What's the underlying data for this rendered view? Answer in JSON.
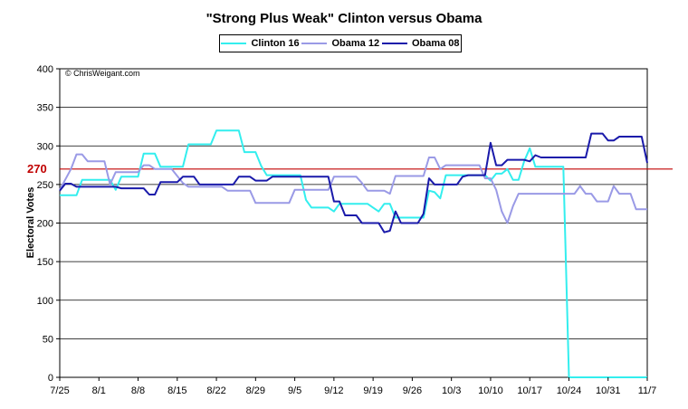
{
  "chart_data": {
    "type": "line",
    "title": "\"Strong Plus Weak\" Clinton versus Obama",
    "ylabel": "Electoral Votes",
    "xlabel": "",
    "ylim": [
      0,
      400
    ],
    "yticks": [
      0,
      50,
      100,
      150,
      200,
      250,
      300,
      350,
      400
    ],
    "xlim": [
      0,
      105
    ],
    "xtick_labels": [
      {
        "x": 0,
        "label": "7/25"
      },
      {
        "x": 7,
        "label": "8/1"
      },
      {
        "x": 14,
        "label": "8/8"
      },
      {
        "x": 21,
        "label": "8/15"
      },
      {
        "x": 28,
        "label": "8/22"
      },
      {
        "x": 35,
        "label": "8/29"
      },
      {
        "x": 42,
        "label": "9/5"
      },
      {
        "x": 49,
        "label": "9/12"
      },
      {
        "x": 56,
        "label": "9/19"
      },
      {
        "x": 63,
        "label": "9/26"
      },
      {
        "x": 70,
        "label": "10/3"
      },
      {
        "x": 77,
        "label": "10/10"
      },
      {
        "x": 84,
        "label": "10/17"
      },
      {
        "x": 91,
        "label": "10/24"
      },
      {
        "x": 98,
        "label": "10/31"
      },
      {
        "x": 105,
        "label": "11/7"
      }
    ],
    "reference_line": {
      "value": 270,
      "label": "270",
      "color": "#c00000"
    },
    "annotation": "© ChrisWeigant.com",
    "legend": "top",
    "grid": true,
    "series": [
      {
        "name": "Clinton 16",
        "color": "#33eeee",
        "points": [
          [
            0,
            236
          ],
          [
            3,
            236
          ],
          [
            4,
            256
          ],
          [
            9,
            256
          ],
          [
            10,
            243
          ],
          [
            11,
            260
          ],
          [
            14,
            260
          ],
          [
            15,
            290
          ],
          [
            17,
            290
          ],
          [
            18,
            273
          ],
          [
            22,
            273
          ],
          [
            23,
            302
          ],
          [
            27,
            302
          ],
          [
            28,
            320
          ],
          [
            32,
            320
          ],
          [
            33,
            292
          ],
          [
            35,
            292
          ],
          [
            36,
            274
          ],
          [
            37,
            262
          ],
          [
            43,
            262
          ],
          [
            44,
            230
          ],
          [
            45,
            220
          ],
          [
            48,
            220
          ],
          [
            49,
            215
          ],
          [
            50,
            225
          ],
          [
            55,
            225
          ],
          [
            56,
            220
          ],
          [
            57,
            215
          ],
          [
            58,
            225
          ],
          [
            59,
            225
          ],
          [
            60,
            207
          ],
          [
            65,
            207
          ],
          [
            66,
            242
          ],
          [
            67,
            240
          ],
          [
            68,
            232
          ],
          [
            69,
            262
          ],
          [
            73,
            262
          ],
          [
            76,
            262
          ],
          [
            77,
            255
          ],
          [
            78,
            264
          ],
          [
            79,
            264
          ],
          [
            80,
            270
          ],
          [
            81,
            256
          ],
          [
            82,
            256
          ],
          [
            83,
            280
          ],
          [
            84,
            297
          ],
          [
            85,
            273
          ],
          [
            88,
            273
          ],
          [
            90,
            273
          ],
          [
            91,
            0
          ],
          [
            105,
            0
          ]
        ]
      },
      {
        "name": "Obama 12",
        "color": "#9a9ae6",
        "points": [
          [
            0,
            243
          ],
          [
            2,
            270
          ],
          [
            3,
            289
          ],
          [
            4,
            289
          ],
          [
            5,
            280
          ],
          [
            8,
            280
          ],
          [
            9,
            250
          ],
          [
            10,
            266
          ],
          [
            14,
            266
          ],
          [
            15,
            275
          ],
          [
            16,
            275
          ],
          [
            17,
            270
          ],
          [
            20,
            270
          ],
          [
            22,
            252
          ],
          [
            23,
            247
          ],
          [
            29,
            247
          ],
          [
            30,
            242
          ],
          [
            34,
            242
          ],
          [
            35,
            226
          ],
          [
            41,
            226
          ],
          [
            42,
            243
          ],
          [
            48,
            243
          ],
          [
            49,
            260
          ],
          [
            53,
            260
          ],
          [
            54,
            252
          ],
          [
            55,
            242
          ],
          [
            58,
            242
          ],
          [
            59,
            238
          ],
          [
            60,
            261
          ],
          [
            65,
            261
          ],
          [
            66,
            285
          ],
          [
            67,
            285
          ],
          [
            68,
            270
          ],
          [
            69,
            275
          ],
          [
            75,
            275
          ],
          [
            76,
            258
          ],
          [
            77,
            258
          ],
          [
            78,
            243
          ],
          [
            79,
            215
          ],
          [
            80,
            200
          ],
          [
            81,
            222
          ],
          [
            82,
            238
          ],
          [
            92,
            238
          ],
          [
            93,
            248
          ],
          [
            94,
            238
          ],
          [
            95,
            238
          ],
          [
            96,
            228
          ],
          [
            98,
            228
          ],
          [
            99,
            248
          ],
          [
            100,
            238
          ],
          [
            102,
            238
          ],
          [
            103,
            218
          ],
          [
            105,
            218
          ]
        ]
      },
      {
        "name": "Obama 08",
        "color": "#1a1aaa",
        "points": [
          [
            0,
            242
          ],
          [
            1,
            251
          ],
          [
            2,
            251
          ],
          [
            3,
            247
          ],
          [
            10,
            247
          ],
          [
            11,
            245
          ],
          [
            15,
            245
          ],
          [
            16,
            237
          ],
          [
            17,
            237
          ],
          [
            18,
            253
          ],
          [
            21,
            253
          ],
          [
            22,
            260
          ],
          [
            24,
            260
          ],
          [
            25,
            250
          ],
          [
            31,
            250
          ],
          [
            32,
            260
          ],
          [
            34,
            260
          ],
          [
            35,
            255
          ],
          [
            37,
            255
          ],
          [
            38,
            260
          ],
          [
            48,
            260
          ],
          [
            49,
            228
          ],
          [
            50,
            228
          ],
          [
            51,
            210
          ],
          [
            53,
            210
          ],
          [
            54,
            200
          ],
          [
            57,
            200
          ],
          [
            58,
            188
          ],
          [
            59,
            190
          ],
          [
            60,
            215
          ],
          [
            61,
            200
          ],
          [
            64,
            200
          ],
          [
            65,
            212
          ],
          [
            66,
            258
          ],
          [
            67,
            250
          ],
          [
            71,
            250
          ],
          [
            72,
            260
          ],
          [
            73,
            262
          ],
          [
            76,
            262
          ],
          [
            77,
            304
          ],
          [
            78,
            275
          ],
          [
            79,
            275
          ],
          [
            80,
            282
          ],
          [
            83,
            282
          ],
          [
            84,
            280
          ],
          [
            85,
            288
          ],
          [
            86,
            285
          ],
          [
            94,
            285
          ],
          [
            95,
            316
          ],
          [
            97,
            316
          ],
          [
            98,
            307
          ],
          [
            99,
            307
          ],
          [
            100,
            312
          ],
          [
            104,
            312
          ],
          [
            105,
            278
          ]
        ]
      }
    ]
  }
}
